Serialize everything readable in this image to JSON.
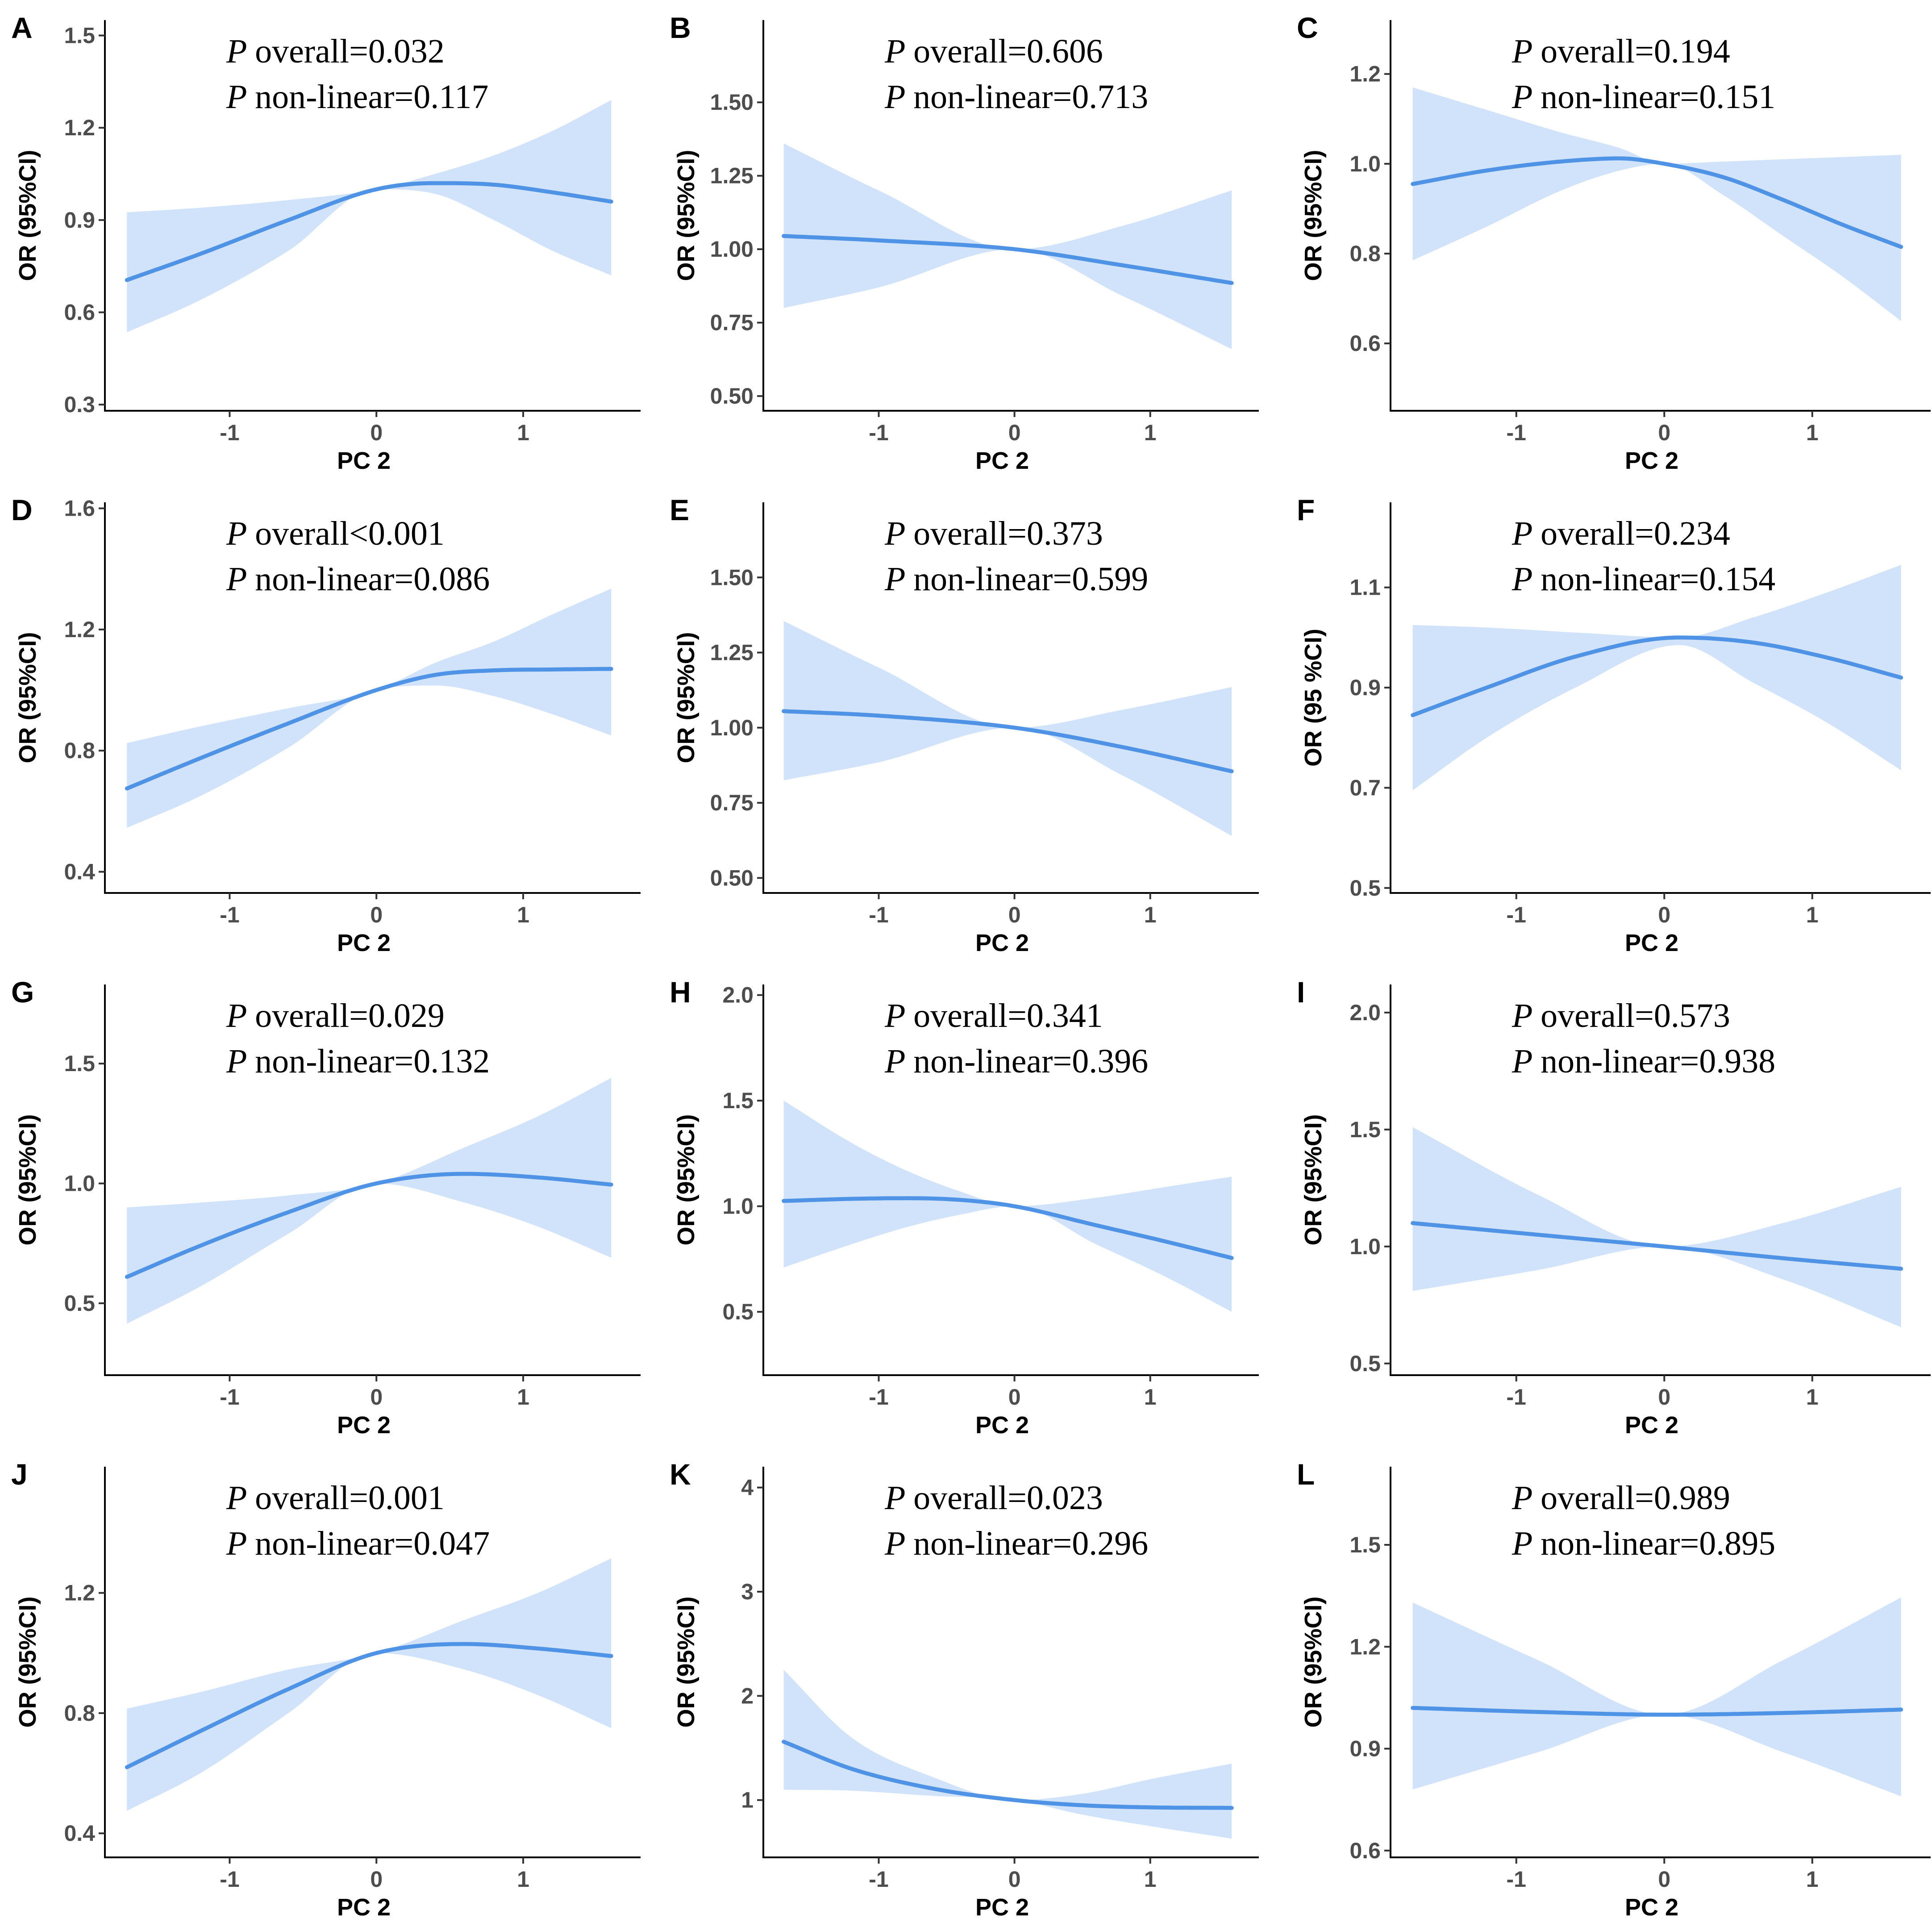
{
  "colors": {
    "band": "#d1e3fa",
    "line": "#4f93e6"
  },
  "chart_data": [
    {
      "panel": "A",
      "type": "line",
      "title": "",
      "xlabel": "PC 2",
      "ylabel": "OR (95%CI)",
      "xlim": [
        -1.85,
        1.8
      ],
      "ylim": [
        0.28,
        1.55
      ],
      "xticks": [
        -1,
        0,
        1
      ],
      "xtick_labels": [
        "-1",
        "0",
        "1"
      ],
      "yticks": [
        0.3,
        0.6,
        0.9,
        1.2,
        1.5
      ],
      "ytick_labels": [
        "0.3",
        "0.6",
        "0.9",
        "1.2",
        "1.5"
      ],
      "p_overall": "overall=0.032",
      "p_nonlinear": "non-linear=0.117",
      "x": [
        -1.7,
        -1.2,
        -0.6,
        0,
        0.4,
        0.8,
        1.2,
        1.6
      ],
      "or": [
        0.705,
        0.79,
        0.9,
        1.0,
        1.02,
        1.015,
        0.99,
        0.96
      ],
      "lower": [
        0.535,
        0.64,
        0.8,
        1.0,
        0.985,
        0.9,
        0.8,
        0.72
      ],
      "upper": [
        0.925,
        0.94,
        0.965,
        1.0,
        1.05,
        1.11,
        1.19,
        1.29
      ]
    },
    {
      "panel": "B",
      "type": "line",
      "title": "",
      "xlabel": "PC 2",
      "ylabel": "OR (95%CI)",
      "xlim": [
        -1.85,
        1.8
      ],
      "ylim": [
        0.45,
        1.78
      ],
      "xticks": [
        -1,
        0,
        1
      ],
      "xtick_labels": [
        "-1",
        "0",
        "1"
      ],
      "yticks": [
        0.5,
        0.75,
        1.0,
        1.25,
        1.5
      ],
      "ytick_labels": [
        "0.50",
        "0.75",
        "1.00",
        "1.25",
        "1.50"
      ],
      "p_overall": "overall=0.606",
      "p_nonlinear": "non-linear=0.713",
      "x": [
        -1.7,
        -1.0,
        0,
        0.8,
        1.6
      ],
      "or": [
        1.045,
        1.03,
        1.0,
        0.945,
        0.885
      ],
      "lower": [
        0.8,
        0.87,
        1.0,
        0.84,
        0.66
      ],
      "upper": [
        1.36,
        1.2,
        1.0,
        1.08,
        1.2
      ]
    },
    {
      "panel": "C",
      "type": "line",
      "title": "",
      "xlabel": "PC 2",
      "ylabel": "OR (95%CI)",
      "xlim": [
        -1.85,
        1.8
      ],
      "ylim": [
        0.45,
        1.32
      ],
      "xticks": [
        -1,
        0,
        1
      ],
      "xtick_labels": [
        "-1",
        "0",
        "1"
      ],
      "yticks": [
        0.6,
        0.8,
        1.0,
        1.2
      ],
      "ytick_labels": [
        "0.6",
        "0.8",
        "1.0",
        "1.2"
      ],
      "p_overall": "overall=0.194",
      "p_nonlinear": "non-linear=0.151",
      "x": [
        -1.7,
        -1.2,
        -0.7,
        -0.3,
        0,
        0.4,
        0.8,
        1.2,
        1.6
      ],
      "or": [
        0.955,
        0.985,
        1.005,
        1.012,
        1.0,
        0.97,
        0.92,
        0.865,
        0.815
      ],
      "lower": [
        0.785,
        0.86,
        0.94,
        0.985,
        1.0,
        0.93,
        0.84,
        0.75,
        0.65
      ],
      "upper": [
        1.17,
        1.12,
        1.07,
        1.035,
        1.0,
        1.005,
        1.01,
        1.015,
        1.02
      ]
    },
    {
      "panel": "D",
      "type": "line",
      "title": "",
      "xlabel": "PC 2",
      "ylabel": "OR (95%CI)",
      "xlim": [
        -1.85,
        1.8
      ],
      "ylim": [
        0.33,
        1.62
      ],
      "xticks": [
        -1,
        0,
        1
      ],
      "xtick_labels": [
        "-1",
        "0",
        "1"
      ],
      "yticks": [
        0.4,
        0.8,
        1.2,
        1.6
      ],
      "ytick_labels": [
        "0.4",
        "0.8",
        "1.2",
        "1.6"
      ],
      "p_overall": "overall<0.001",
      "p_nonlinear": "non-linear=0.086",
      "x": [
        -1.7,
        -1.2,
        -0.6,
        0,
        0.4,
        0.8,
        1.2,
        1.6
      ],
      "or": [
        0.675,
        0.775,
        0.89,
        1.0,
        1.05,
        1.065,
        1.068,
        1.07
      ],
      "lower": [
        0.545,
        0.65,
        0.81,
        1.0,
        1.015,
        0.98,
        0.92,
        0.85
      ],
      "upper": [
        0.825,
        0.88,
        0.94,
        1.0,
        1.09,
        1.16,
        1.25,
        1.335
      ]
    },
    {
      "panel": "E",
      "type": "line",
      "title": "",
      "xlabel": "PC 2",
      "ylabel": "OR (95%CI)",
      "xlim": [
        -1.85,
        1.8
      ],
      "ylim": [
        0.45,
        1.75
      ],
      "xticks": [
        -1,
        0,
        1
      ],
      "xtick_labels": [
        "-1",
        "0",
        "1"
      ],
      "yticks": [
        0.5,
        0.75,
        1.0,
        1.25,
        1.5
      ],
      "ytick_labels": [
        "0.50",
        "0.75",
        "1.00",
        "1.25",
        "1.50"
      ],
      "p_overall": "overall=0.373",
      "p_nonlinear": "non-linear=0.599",
      "x": [
        -1.7,
        -1.0,
        0,
        0.8,
        1.6
      ],
      "or": [
        1.055,
        1.04,
        1.0,
        0.935,
        0.855
      ],
      "lower": [
        0.825,
        0.885,
        1.0,
        0.84,
        0.64
      ],
      "upper": [
        1.355,
        1.2,
        1.0,
        1.06,
        1.135
      ]
    },
    {
      "panel": "F",
      "type": "line",
      "title": "",
      "xlabel": "PC 2",
      "ylabel": "OR (95 %CI)",
      "xlim": [
        -1.85,
        1.8
      ],
      "ylim": [
        0.49,
        1.27
      ],
      "xticks": [
        -1,
        0,
        1
      ],
      "xtick_labels": [
        "-1",
        "0",
        "1"
      ],
      "yticks": [
        0.5,
        0.7,
        0.9,
        1.1
      ],
      "ytick_labels": [
        "0.5",
        "0.7",
        "0.9",
        "1.1"
      ],
      "p_overall": "overall=0.234",
      "p_nonlinear": "non-linear=0.154",
      "x": [
        -1.7,
        -1.2,
        -0.6,
        0.1,
        0.6,
        1.1,
        1.6
      ],
      "or": [
        0.845,
        0.9,
        0.962,
        1.0,
        0.99,
        0.96,
        0.92
      ],
      "lower": [
        0.695,
        0.8,
        0.9,
        0.985,
        0.91,
        0.83,
        0.735
      ],
      "upper": [
        1.025,
        1.02,
        1.01,
        1.0,
        1.04,
        1.09,
        1.145
      ]
    },
    {
      "panel": "G",
      "type": "line",
      "title": "",
      "xlabel": "PC 2",
      "ylabel": "OR (95%CI)",
      "xlim": [
        -1.85,
        1.8
      ],
      "ylim": [
        0.2,
        1.83
      ],
      "xticks": [
        -1,
        0,
        1
      ],
      "xtick_labels": [
        "-1",
        "0",
        "1"
      ],
      "yticks": [
        0.5,
        1.0,
        1.5
      ],
      "ytick_labels": [
        "0.5",
        "1.0",
        "1.5"
      ],
      "p_overall": "overall=0.029",
      "p_nonlinear": "non-linear=0.132",
      "x": [
        -1.7,
        -1.2,
        -0.6,
        0,
        0.6,
        1.1,
        1.6
      ],
      "or": [
        0.61,
        0.74,
        0.88,
        1.0,
        1.04,
        1.025,
        0.995
      ],
      "lower": [
        0.415,
        0.57,
        0.79,
        1.0,
        0.92,
        0.82,
        0.69
      ],
      "upper": [
        0.9,
        0.92,
        0.95,
        1.0,
        1.15,
        1.28,
        1.44
      ]
    },
    {
      "panel": "H",
      "type": "line",
      "title": "",
      "xlabel": "PC 2",
      "ylabel": "OR (95%CI)",
      "xlim": [
        -1.85,
        1.8
      ],
      "ylim": [
        0.2,
        2.05
      ],
      "xticks": [
        -1,
        0,
        1
      ],
      "xtick_labels": [
        "-1",
        "0",
        "1"
      ],
      "yticks": [
        0.5,
        1.0,
        1.5,
        2.0
      ],
      "ytick_labels": [
        "0.5",
        "1.0",
        "1.5",
        "2.0"
      ],
      "p_overall": "overall=0.341",
      "p_nonlinear": "non-linear=0.396",
      "x": [
        -1.7,
        -1.2,
        -0.8,
        -0.4,
        0,
        0.6,
        1.1,
        1.6
      ],
      "or": [
        1.025,
        1.035,
        1.038,
        1.03,
        1.0,
        0.91,
        0.835,
        0.755
      ],
      "lower": [
        0.71,
        0.82,
        0.9,
        0.96,
        1.0,
        0.82,
        0.67,
        0.5
      ],
      "upper": [
        1.5,
        1.3,
        1.17,
        1.07,
        1.0,
        1.04,
        1.09,
        1.14
      ]
    },
    {
      "panel": "I",
      "type": "line",
      "title": "",
      "xlabel": "PC 2",
      "ylabel": "OR (95%CI)",
      "xlim": [
        -1.85,
        1.8
      ],
      "ylim": [
        0.45,
        2.12
      ],
      "xticks": [
        -1,
        0,
        1
      ],
      "xtick_labels": [
        "-1",
        "0",
        "1"
      ],
      "yticks": [
        0.5,
        1.0,
        1.5,
        2.0
      ],
      "ytick_labels": [
        "0.5",
        "1.0",
        "1.5",
        "2.0"
      ],
      "p_overall": "overall=0.573",
      "p_nonlinear": "non-linear=0.938",
      "x": [
        -1.7,
        -0.85,
        0,
        0.8,
        1.6
      ],
      "or": [
        1.1,
        1.05,
        1.0,
        0.95,
        0.905
      ],
      "lower": [
        0.81,
        0.9,
        1.0,
        0.86,
        0.655
      ],
      "upper": [
        1.51,
        1.22,
        1.0,
        1.1,
        1.255
      ]
    },
    {
      "panel": "J",
      "type": "line",
      "title": "",
      "xlabel": "PC 2",
      "ylabel": "OR (95%CI)",
      "xlim": [
        -1.85,
        1.8
      ],
      "ylim": [
        0.32,
        1.62
      ],
      "xticks": [
        -1,
        0,
        1
      ],
      "xtick_labels": [
        "-1",
        "0",
        "1"
      ],
      "yticks": [
        0.4,
        0.8,
        1.2
      ],
      "ytick_labels": [
        "0.4",
        "0.8",
        "1.2"
      ],
      "p_overall": "overall=0.001",
      "p_nonlinear": "non-linear=0.047",
      "x": [
        -1.7,
        -1.2,
        -0.6,
        0,
        0.6,
        1.1,
        1.6
      ],
      "or": [
        0.62,
        0.74,
        0.88,
        1.0,
        1.03,
        1.015,
        0.99
      ],
      "lower": [
        0.475,
        0.6,
        0.8,
        1.0,
        0.945,
        0.86,
        0.75
      ],
      "upper": [
        0.815,
        0.87,
        0.945,
        1.0,
        1.11,
        1.2,
        1.315
      ]
    },
    {
      "panel": "K",
      "type": "line",
      "title": "",
      "xlabel": "PC 2",
      "ylabel": "OR (95%CI)",
      "xlim": [
        -1.85,
        1.8
      ],
      "ylim": [
        0.45,
        4.2
      ],
      "xticks": [
        -1,
        0,
        1
      ],
      "xtick_labels": [
        "-1",
        "0",
        "1"
      ],
      "yticks": [
        1,
        2,
        3,
        4
      ],
      "ytick_labels": [
        "1",
        "2",
        "3",
        "4"
      ],
      "p_overall": "overall=0.023",
      "p_nonlinear": "non-linear=0.296",
      "x": [
        -1.7,
        -1.2,
        -0.6,
        0,
        0.5,
        1.0,
        1.6
      ],
      "or": [
        1.56,
        1.3,
        1.11,
        1.0,
        0.95,
        0.93,
        0.925
      ],
      "lower": [
        1.1,
        1.09,
        1.04,
        1.0,
        0.86,
        0.75,
        0.63
      ],
      "upper": [
        2.25,
        1.6,
        1.22,
        1.0,
        1.06,
        1.2,
        1.35
      ]
    },
    {
      "panel": "L",
      "type": "line",
      "title": "",
      "xlabel": "PC 2",
      "ylabel": "OR (95%CI)",
      "xlim": [
        -1.85,
        1.8
      ],
      "ylim": [
        0.58,
        1.73
      ],
      "xticks": [
        -1,
        0,
        1
      ],
      "xtick_labels": [
        "-1",
        "0",
        "1"
      ],
      "yticks": [
        0.6,
        0.9,
        1.2,
        1.5
      ],
      "ytick_labels": [
        "0.6",
        "0.9",
        "1.2",
        "1.5"
      ],
      "p_overall": "overall=0.989",
      "p_nonlinear": "non-linear=0.895",
      "x": [
        -1.7,
        -0.85,
        0,
        0.8,
        1.6
      ],
      "or": [
        1.02,
        1.008,
        1.0,
        1.005,
        1.015
      ],
      "lower": [
        0.78,
        0.89,
        1.0,
        0.89,
        0.76
      ],
      "upper": [
        1.33,
        1.16,
        1.0,
        1.16,
        1.345
      ]
    }
  ]
}
